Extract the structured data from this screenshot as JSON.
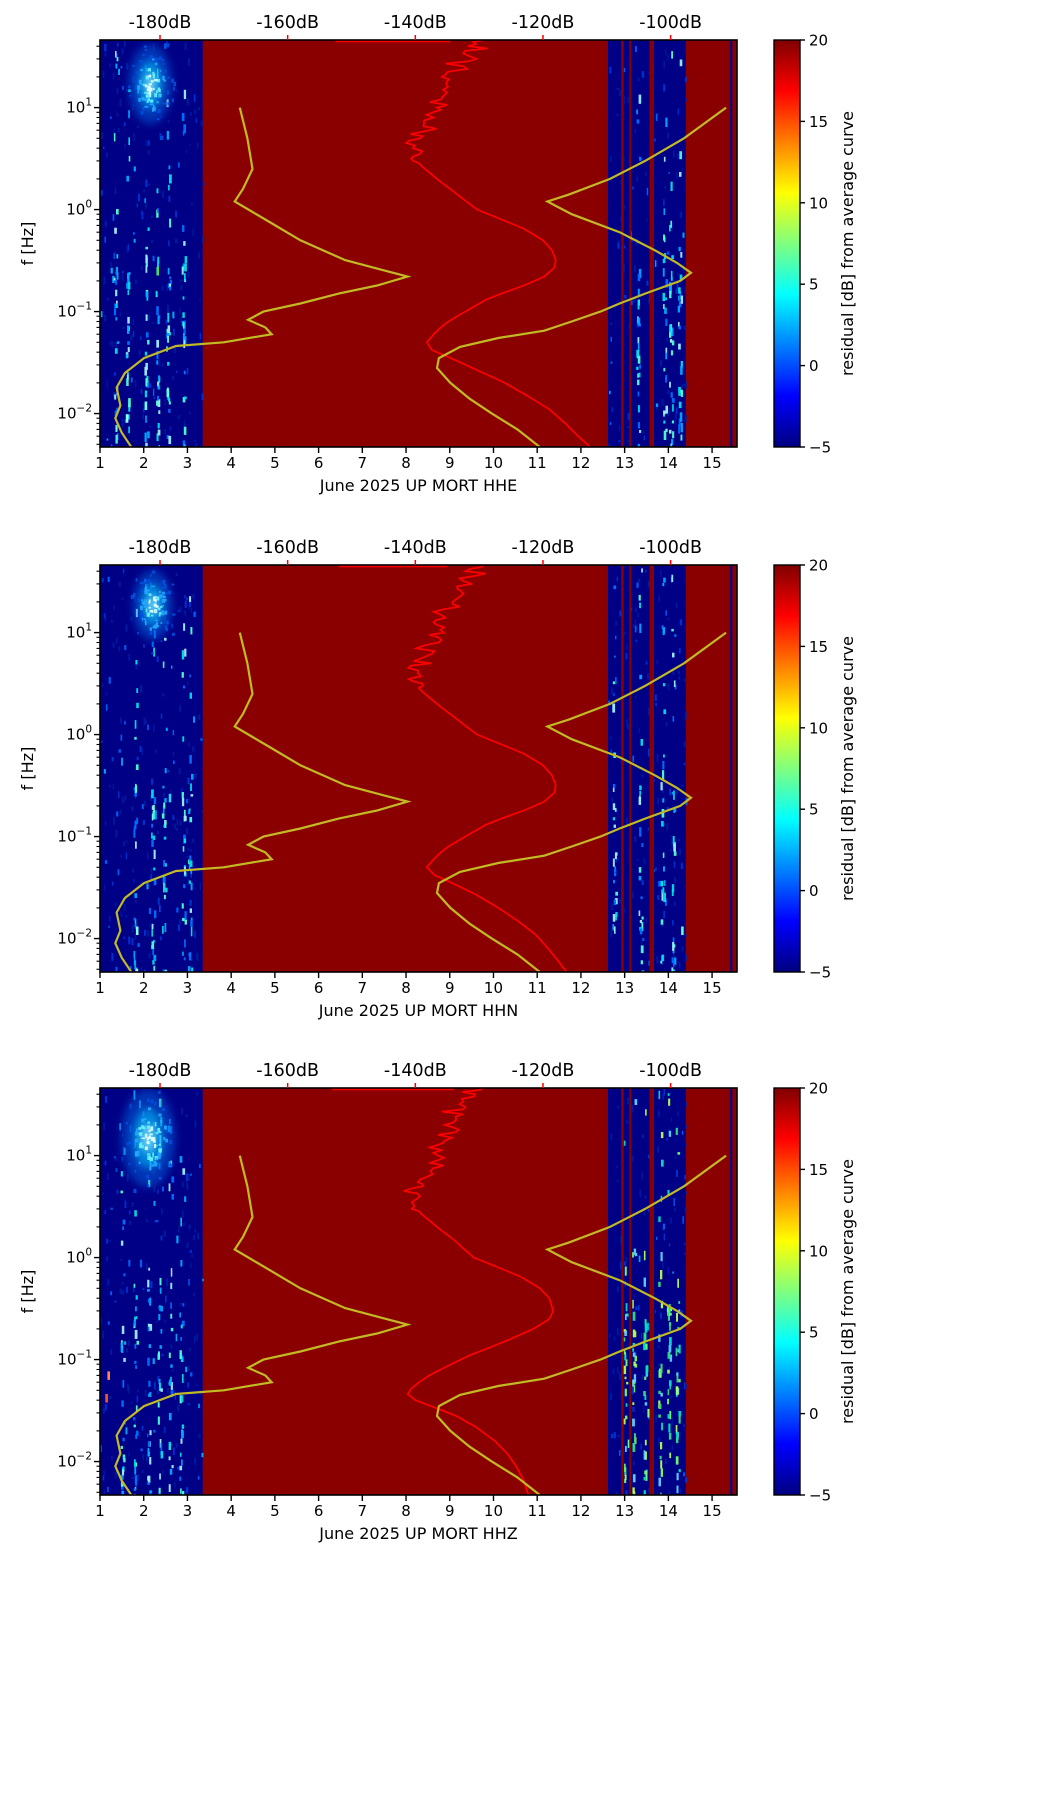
{
  "figure": {
    "colors": {
      "background": "#ffffff",
      "psd_curve": "#ff0000",
      "noise_model_curve": "#c2ba25",
      "axis_text": "#000000",
      "top_axis_text": "#ff0000"
    }
  },
  "chart_data": {
    "type": "heatmap",
    "x_axis": {
      "ticks": [
        "1",
        "2",
        "3",
        "4",
        "5",
        "6",
        "7",
        "8",
        "9",
        "10",
        "11",
        "12",
        "13",
        "14",
        "15"
      ],
      "tick_values": [
        1,
        2,
        3,
        4,
        5,
        6,
        7,
        8,
        9,
        10,
        11,
        12,
        13,
        14,
        15
      ],
      "range_days": [
        1,
        15.57
      ]
    },
    "y_axis": {
      "label": "f [Hz]",
      "scale": "log",
      "ticks": [
        {
          "base": "10",
          "exp": "−2"
        },
        {
          "base": "10",
          "exp": "−1"
        },
        {
          "base": "10",
          "exp": "0"
        },
        {
          "base": "10",
          "exp": "1"
        }
      ],
      "tick_values_hz": [
        0.01,
        0.1,
        1,
        10
      ],
      "range_hz": [
        0.0047,
        46
      ]
    },
    "top_axis": {
      "labels": [
        "-180dB",
        "-160dB",
        "-140dB",
        "-120dB",
        "-100dB"
      ],
      "tick_values_db": [
        -180,
        -160,
        -140,
        -120,
        -100
      ],
      "range_db": [
        -189.4,
        -89.6
      ]
    },
    "colorbar": {
      "label": "residual [dB] from average curve",
      "ticks": [
        "20",
        "15",
        "10",
        "5",
        "0",
        "−5"
      ],
      "tick_values": [
        20,
        15,
        10,
        5,
        0,
        -5
      ],
      "range": [
        -5,
        20
      ],
      "colormap": "jet",
      "gradient_stops": [
        [
          "0",
          "#000080"
        ],
        [
          "0.125",
          "#0000ff"
        ],
        [
          "0.375",
          "#00ffff"
        ],
        [
          "0.625",
          "#ffff00"
        ],
        [
          "0.875",
          "#ff0000"
        ],
        [
          "1",
          "#800000"
        ]
      ]
    },
    "heatmap": {
      "saturated_value_db": 20,
      "base_color": "#8a0000",
      "navy_color": "#000086",
      "navy_bands_days": [
        [
          1,
          3.35
        ],
        [
          12.62,
          14.4
        ]
      ],
      "red_lines_days": [
        [
          12.95,
          2.5
        ],
        [
          13.13,
          2
        ],
        [
          13.62,
          4.5
        ]
      ],
      "thin_navy_lines_days": [
        15.44
      ]
    },
    "noise_models": {
      "low_noise_model_db_vs_hz": [
        [
          10,
          -167.5
        ],
        [
          5,
          -166.3
        ],
        [
          2.5,
          -165.5
        ],
        [
          1.6,
          -167
        ],
        [
          1.2,
          -168.3
        ],
        [
          0.8,
          -163.5
        ],
        [
          0.5,
          -158
        ],
        [
          0.32,
          -151
        ],
        [
          0.22,
          -141.2
        ],
        [
          0.18,
          -146
        ],
        [
          0.15,
          -152
        ],
        [
          0.12,
          -158
        ],
        [
          0.1,
          -163.8
        ],
        [
          0.083,
          -166.2
        ],
        [
          0.07,
          -163.5
        ],
        [
          0.06,
          -162.5
        ],
        [
          0.05,
          -170
        ],
        [
          0.046,
          -177.5
        ],
        [
          0.035,
          -182.5
        ],
        [
          0.025,
          -185.5
        ],
        [
          0.018,
          -186.8
        ],
        [
          0.012,
          -186.2
        ],
        [
          0.009,
          -187
        ],
        [
          0.0065,
          -186
        ],
        [
          0.0047,
          -184.5
        ]
      ],
      "high_noise_model_db_vs_hz": [
        [
          10,
          -91.3
        ],
        [
          5,
          -97.9
        ],
        [
          3,
          -104
        ],
        [
          2,
          -109.5
        ],
        [
          1.4,
          -116
        ],
        [
          1.2,
          -119.3
        ],
        [
          0.9,
          -115.5
        ],
        [
          0.6,
          -108
        ],
        [
          0.4,
          -102.5
        ],
        [
          0.3,
          -99
        ],
        [
          0.24,
          -96.8
        ],
        [
          0.2,
          -98.5
        ],
        [
          0.15,
          -104
        ],
        [
          0.12,
          -108
        ],
        [
          0.1,
          -111
        ],
        [
          0.08,
          -115.5
        ],
        [
          0.065,
          -119.8
        ],
        [
          0.055,
          -127
        ],
        [
          0.045,
          -133
        ],
        [
          0.035,
          -136.3
        ],
        [
          0.028,
          -136.6
        ],
        [
          0.02,
          -134.5
        ],
        [
          0.014,
          -131.5
        ],
        [
          0.01,
          -128
        ],
        [
          0.007,
          -124
        ],
        [
          0.0047,
          -120.5
        ]
      ]
    },
    "panels": [
      {
        "channel": "HHE",
        "xlabel": "June 2025 UP MORT  HHE",
        "top_clip_segment_db": [
          -152.5,
          -134.5
        ],
        "psd_median_db_vs_hz": [
          [
            46,
            -129.3
          ],
          [
            42,
            -131.8
          ],
          [
            38,
            -130
          ],
          [
            34,
            -133.3
          ],
          [
            30,
            -131
          ],
          [
            27,
            -134.6
          ],
          [
            24,
            -132.5
          ],
          [
            21,
            -135
          ],
          [
            18,
            -133.8
          ],
          [
            16,
            -136
          ],
          [
            14,
            -135
          ],
          [
            12,
            -137
          ],
          [
            10,
            -135.8
          ],
          [
            9,
            -137.6
          ],
          [
            8,
            -136.8
          ],
          [
            7,
            -138.6
          ],
          [
            6.2,
            -137.3
          ],
          [
            5.5,
            -140
          ],
          [
            5,
            -138.8
          ],
          [
            4.5,
            -141
          ],
          [
            4,
            -139.5
          ],
          [
            3.5,
            -140.6
          ],
          [
            3,
            -139.8
          ],
          [
            2.6,
            -138.8
          ],
          [
            2.2,
            -137.4
          ],
          [
            1.8,
            -135.7
          ],
          [
            1.5,
            -134
          ],
          [
            1.2,
            -132
          ],
          [
            1,
            -130.3
          ],
          [
            0.8,
            -126.5
          ],
          [
            0.65,
            -123
          ],
          [
            0.5,
            -120
          ],
          [
            0.4,
            -118.6
          ],
          [
            0.32,
            -118
          ],
          [
            0.27,
            -118.2
          ],
          [
            0.22,
            -119.8
          ],
          [
            0.18,
            -123
          ],
          [
            0.15,
            -126.5
          ],
          [
            0.13,
            -129
          ],
          [
            0.11,
            -131
          ],
          [
            0.095,
            -132.8
          ],
          [
            0.08,
            -134.8
          ],
          [
            0.07,
            -136
          ],
          [
            0.06,
            -137.1
          ],
          [
            0.05,
            -138.2
          ],
          [
            0.042,
            -137.4
          ],
          [
            0.034,
            -134
          ],
          [
            0.027,
            -130.5
          ],
          [
            0.02,
            -126
          ],
          [
            0.015,
            -122.5
          ],
          [
            0.011,
            -119
          ],
          [
            0.008,
            -116.5
          ],
          [
            0.006,
            -114.5
          ],
          [
            0.0047,
            -112.6
          ]
        ],
        "texture": {
          "seed": 11,
          "blob": {
            "day": 2.15,
            "day_sigma": 0.22,
            "logf_center": 1.23,
            "logf_sigma": 0.17
          },
          "left_bright_columns_days": [
            1.35,
            1.62,
            2.05,
            2.3,
            2.55,
            2.9
          ],
          "mid_bright_columns_days": [
            13.3,
            13.9,
            14.05,
            14.25
          ],
          "mid_palette": "blue",
          "accent_dashes": [
            [
              2.32,
              0.25,
              "#3ce06a"
            ],
            [
              2.05,
              0.012,
              "#70ffff"
            ],
            [
              1.62,
              0.009,
              "#90ffff"
            ],
            [
              2.55,
              0.016,
              "#60ffe0"
            ]
          ]
        }
      },
      {
        "channel": "HHN",
        "xlabel": "June 2025 UP MORT  HHN",
        "top_clip_segment_db": [
          -152,
          -135
        ],
        "psd_median_db_vs_hz": [
          [
            46,
            -129.3
          ],
          [
            42,
            -131.8
          ],
          [
            38,
            -130
          ],
          [
            34,
            -133.3
          ],
          [
            30,
            -131
          ],
          [
            27,
            -134.6
          ],
          [
            24,
            -132.5
          ],
          [
            21,
            -135
          ],
          [
            18,
            -133.8
          ],
          [
            16,
            -136
          ],
          [
            14,
            -135
          ],
          [
            12,
            -137
          ],
          [
            10,
            -135.8
          ],
          [
            9,
            -137.6
          ],
          [
            8,
            -136.8
          ],
          [
            7,
            -138.6
          ],
          [
            6.2,
            -137.3
          ],
          [
            5.5,
            -140
          ],
          [
            5,
            -138.8
          ],
          [
            4.5,
            -141
          ],
          [
            4,
            -139.5
          ],
          [
            3.5,
            -140.6
          ],
          [
            3,
            -139.8
          ],
          [
            2.6,
            -138.8
          ],
          [
            2.2,
            -137.4
          ],
          [
            1.8,
            -135.7
          ],
          [
            1.5,
            -134
          ],
          [
            1.2,
            -132
          ],
          [
            1,
            -130.3
          ],
          [
            0.8,
            -126.5
          ],
          [
            0.65,
            -123
          ],
          [
            0.5,
            -120
          ],
          [
            0.4,
            -118.6
          ],
          [
            0.32,
            -118
          ],
          [
            0.27,
            -118.2
          ],
          [
            0.22,
            -119.8
          ],
          [
            0.18,
            -123
          ],
          [
            0.15,
            -126.5
          ],
          [
            0.13,
            -129
          ],
          [
            0.11,
            -131
          ],
          [
            0.095,
            -132.8
          ],
          [
            0.08,
            -134.8
          ],
          [
            0.07,
            -136
          ],
          [
            0.06,
            -137.1
          ],
          [
            0.05,
            -138.2
          ],
          [
            0.042,
            -137
          ],
          [
            0.034,
            -133.8
          ],
          [
            0.027,
            -130.5
          ],
          [
            0.02,
            -127
          ],
          [
            0.015,
            -124
          ],
          [
            0.011,
            -121.2
          ],
          [
            0.008,
            -119.2
          ],
          [
            0.006,
            -117.6
          ],
          [
            0.0047,
            -116.3
          ]
        ],
        "texture": {
          "seed": 22,
          "blob": {
            "day": 2.2,
            "day_sigma": 0.2,
            "logf_center": 1.27,
            "logf_sigma": 0.15
          },
          "left_bright_columns_days": [
            1.8,
            2.2,
            2.45,
            2.9,
            3.05
          ],
          "mid_bright_columns_days": [
            12.75,
            13.35,
            13.85,
            14.1
          ],
          "mid_palette": "blue",
          "accent_dashes": [
            [
              1.85,
              0.012,
              "#80ffff"
            ],
            [
              14.32,
              0.012,
              "#60ffd0"
            ],
            [
              2.6,
              0.24,
              "#30d0ff"
            ]
          ]
        }
      },
      {
        "channel": "HHZ",
        "xlabel": "June 2025 UP MORT  HHZ",
        "top_clip_segment_db": [
          -153,
          -134
        ],
        "psd_median_db_vs_hz": [
          [
            46,
            -129.3
          ],
          [
            42,
            -131.8
          ],
          [
            38,
            -130
          ],
          [
            34,
            -133.3
          ],
          [
            30,
            -131
          ],
          [
            27,
            -134.6
          ],
          [
            24,
            -132.5
          ],
          [
            21,
            -135
          ],
          [
            18,
            -133.8
          ],
          [
            16,
            -136
          ],
          [
            14,
            -135
          ],
          [
            12,
            -137
          ],
          [
            10,
            -135.8
          ],
          [
            9,
            -137.6
          ],
          [
            8,
            -136.8
          ],
          [
            7,
            -138.6
          ],
          [
            6.2,
            -137.3
          ],
          [
            5.5,
            -140
          ],
          [
            5,
            -138.8
          ],
          [
            4.5,
            -141
          ],
          [
            4,
            -139.5
          ],
          [
            3.5,
            -140.6
          ],
          [
            3,
            -139.8
          ],
          [
            2.6,
            -138.8
          ],
          [
            2.2,
            -137.4
          ],
          [
            1.8,
            -135.7
          ],
          [
            1.5,
            -134
          ],
          [
            1.2,
            -132.3
          ],
          [
            1,
            -130.8
          ],
          [
            0.8,
            -127
          ],
          [
            0.65,
            -123.5
          ],
          [
            0.5,
            -120.5
          ],
          [
            0.4,
            -119
          ],
          [
            0.3,
            -118.4
          ],
          [
            0.25,
            -119
          ],
          [
            0.2,
            -121.5
          ],
          [
            0.16,
            -125
          ],
          [
            0.13,
            -128.5
          ],
          [
            0.11,
            -131.5
          ],
          [
            0.095,
            -133.6
          ],
          [
            0.08,
            -136
          ],
          [
            0.07,
            -137.8
          ],
          [
            0.06,
            -139.4
          ],
          [
            0.052,
            -140.6
          ],
          [
            0.046,
            -141.2
          ],
          [
            0.04,
            -140
          ],
          [
            0.034,
            -137
          ],
          [
            0.028,
            -133.6
          ],
          [
            0.022,
            -130.6
          ],
          [
            0.016,
            -127.6
          ],
          [
            0.012,
            -125.6
          ],
          [
            0.009,
            -124.2
          ],
          [
            0.0065,
            -123
          ],
          [
            0.0047,
            -122.3
          ]
        ],
        "texture": {
          "seed": 33,
          "blob": {
            "day": 2.1,
            "day_sigma": 0.27,
            "logf_center": 1.17,
            "logf_sigma": 0.21
          },
          "left_bright_columns_days": [
            1.5,
            1.8,
            2.1,
            2.35,
            2.6,
            2.85
          ],
          "mid_bright_columns_days": [
            13.0,
            13.2,
            13.45,
            13.8,
            14.0,
            14.2
          ],
          "mid_palette": "green",
          "accent_dashes": [
            [
              1.15,
              0.042,
              "#ff5522"
            ],
            [
              1.2,
              0.07,
              "#ff8844"
            ],
            [
              13.55,
              0.03,
              "#80ff80"
            ],
            [
              14.2,
              0.05,
              "#a0ff60"
            ],
            [
              13.1,
              0.015,
              "#60ffa0"
            ]
          ]
        }
      }
    ]
  }
}
